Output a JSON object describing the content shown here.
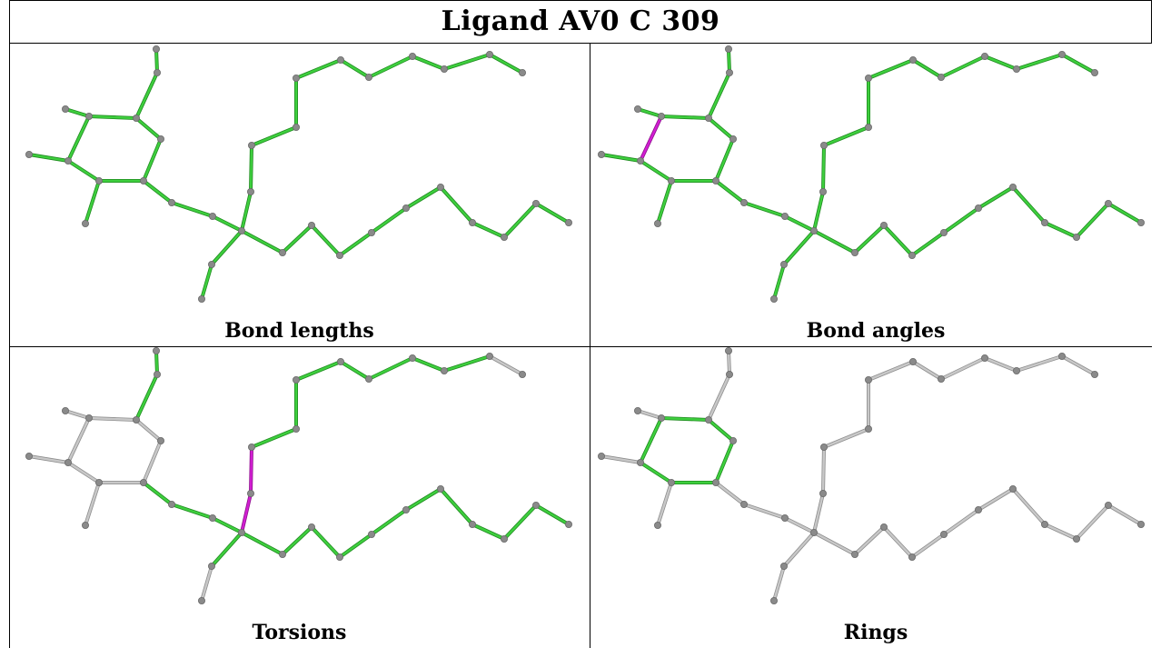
{
  "title": "Ligand AV0 C 309",
  "panels": [
    {
      "caption": "Bond lengths"
    },
    {
      "caption": "Bond angles"
    },
    {
      "caption": "Torsions"
    },
    {
      "caption": "Rings"
    }
  ],
  "colors": {
    "ok_green": "#3ecf3e",
    "ok_green_dark": "#1f8a1f",
    "outlier_magenta": "#d21ed2",
    "not_assessed_gray": "#c8c8c8",
    "atom_gray": "#8a8a8a"
  }
}
